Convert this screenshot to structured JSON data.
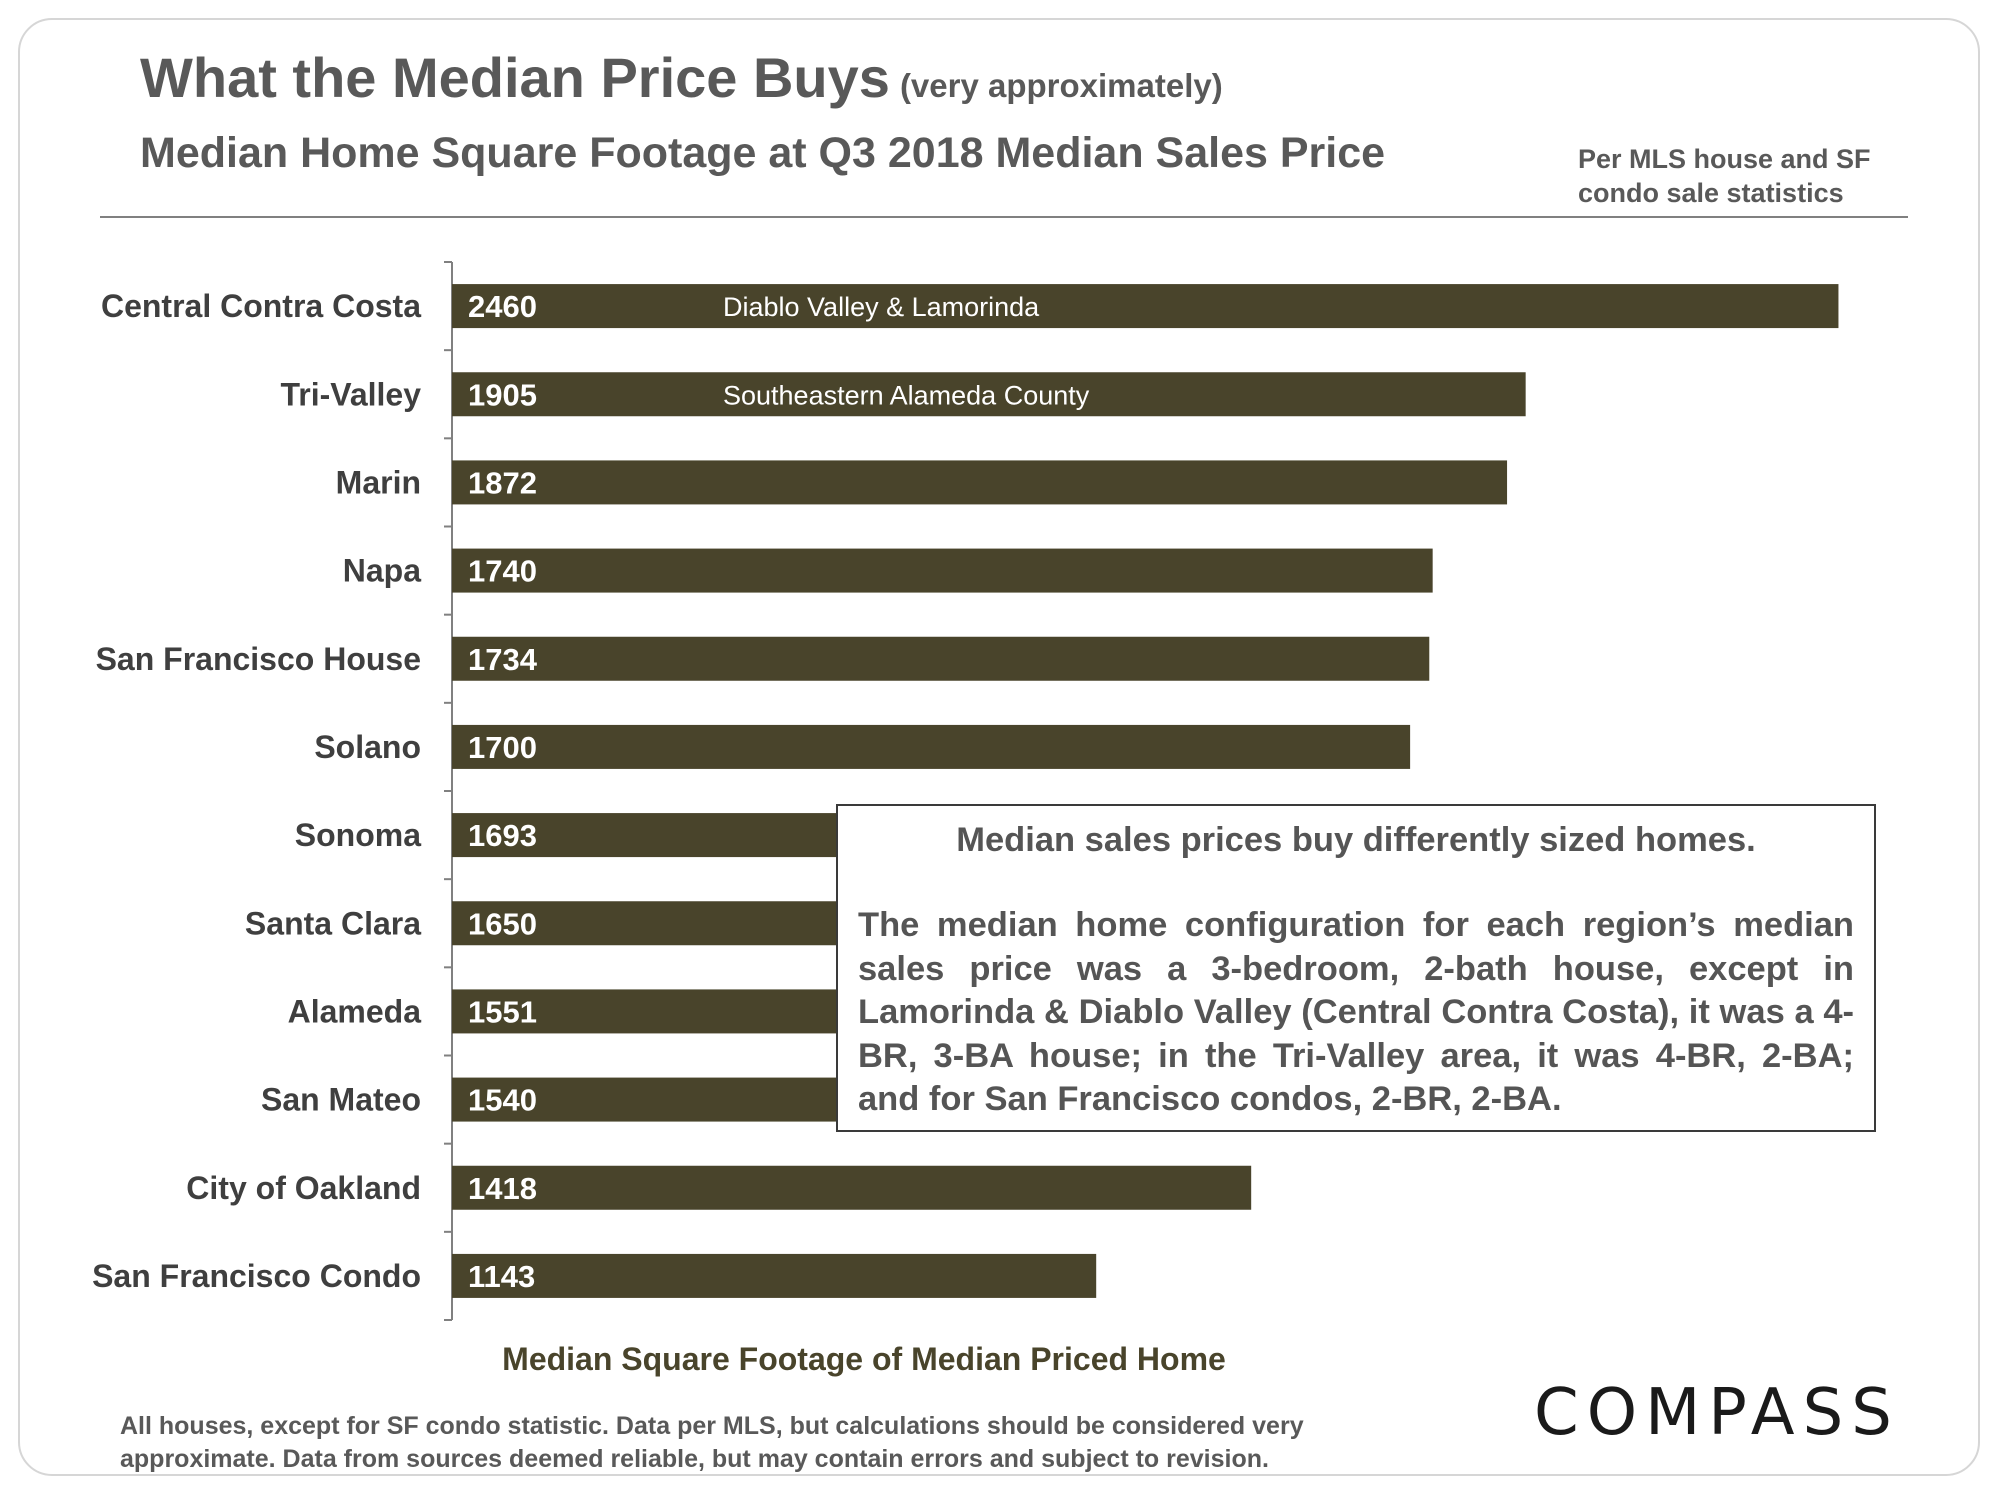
{
  "header": {
    "title": "What the Median Price Buys",
    "title_qualifier": "(very approximately)",
    "subtitle": "Median Home Square Footage at Q3 2018 Median Sales Price",
    "source_note": "Per MLS house and SF condo sale statistics"
  },
  "chart_data": {
    "type": "bar",
    "orientation": "horizontal",
    "title": "Median Home Square Footage at Q3 2018 Median Sales Price",
    "xlabel": "Median Square Footage of Median Priced Home",
    "ylabel": "",
    "xlim": [
      0,
      2500
    ],
    "grid": false,
    "legend": "none",
    "bar_color": "#49442b",
    "categories": [
      "Central Contra Costa",
      "Tri-Valley",
      "Marin",
      "Napa",
      "San Francisco House",
      "Solano",
      "Sonoma",
      "Santa Clara",
      "Alameda",
      "San Mateo",
      "City of Oakland",
      "San Francisco Condo"
    ],
    "values": [
      2460,
      1905,
      1872,
      1740,
      1734,
      1700,
      1693,
      1650,
      1551,
      1540,
      1418,
      1143
    ],
    "value_labels": [
      "2460",
      "1905",
      "1872",
      "1740",
      "1734",
      "1700",
      "1693",
      "1650",
      "1551",
      "1540",
      "1418",
      "1143"
    ],
    "bar_notes": [
      {
        "category": "Central Contra Costa",
        "text": "Diablo Valley & Lamorinda"
      },
      {
        "category": "Tri-Valley",
        "text": "Southeastern Alameda County"
      }
    ]
  },
  "callout": {
    "headline": "Median sales prices buy differently sized homes.",
    "body": "The median home configuration for each region’s median sales price was a 3-bedroom, 2-bath house, except in Lamorinda & Diablo Valley (Central Contra Costa), it was a 4-BR, 3-BA house; in the Tri-Valley area, it was 4-BR, 2-BA; and for San Francisco condos, 2-BR, 2-BA."
  },
  "footnote": "All houses, except for SF condo statistic. Data per MLS, but calculations should be considered very approximate. Data from sources deemed reliable, but may contain errors and subject to revision.",
  "brand": {
    "logo_text": "COMPASS"
  }
}
